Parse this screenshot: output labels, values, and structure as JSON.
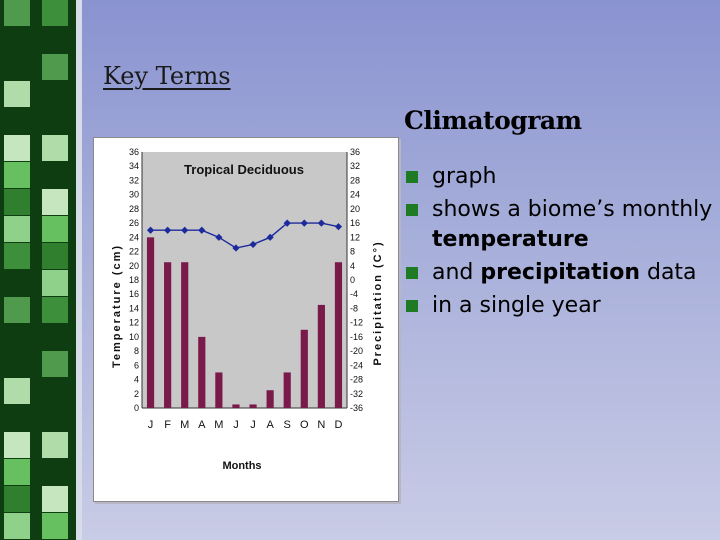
{
  "slide": {
    "heading": "Key Terms",
    "term": "Climatogram",
    "bullets": [
      {
        "parts": [
          {
            "text": "graph",
            "bold": false
          }
        ]
      },
      {
        "parts": [
          {
            "text": "shows a biome’s monthly ",
            "bold": false
          },
          {
            "text": "temperature",
            "bold": true
          }
        ]
      },
      {
        "parts": [
          {
            "text": "and ",
            "bold": false
          },
          {
            "text": "precipitation",
            "bold": true
          },
          {
            "text": " data",
            "bold": false
          }
        ]
      },
      {
        "parts": [
          {
            "text": "in a single year",
            "bold": false
          }
        ]
      }
    ]
  },
  "colors": {
    "bar": "#7a1a4a",
    "line": "#1c2a9c",
    "plot_bg": "#c8c8c8",
    "bullet": "#1f7a24"
  },
  "chart_data": {
    "type": "bar",
    "title": "Tropical Deciduous",
    "xlabel": "Months",
    "ylabel_left": "Temperature (cm)",
    "ylabel_right": "Precipitation (C°)",
    "categories": [
      "J",
      "F",
      "M",
      "A",
      "M",
      "J",
      "J",
      "A",
      "S",
      "O",
      "N",
      "D"
    ],
    "left_ticks": [
      "36",
      "34",
      "32",
      "30",
      "28",
      "26",
      "24",
      "22",
      "20",
      "18",
      "16",
      "14",
      "12",
      "10",
      "8",
      "6",
      "4",
      "2",
      "0"
    ],
    "right_ticks": [
      "36",
      "32",
      "28",
      "24",
      "20",
      "16",
      "12",
      "8",
      "4",
      "0",
      "-4",
      "-8",
      "-12",
      "-16",
      "-20",
      "-24",
      "-28",
      "-32",
      "-36"
    ],
    "ylim": [
      0,
      36
    ],
    "series": [
      {
        "kind": "bar",
        "values": [
          24,
          20.5,
          20.5,
          10,
          5,
          0.5,
          0.5,
          2.5,
          5,
          11,
          14.5,
          20.5
        ]
      },
      {
        "kind": "line",
        "values": [
          25,
          25,
          25,
          25,
          24,
          22.5,
          23,
          24,
          26,
          26,
          26,
          25.5
        ]
      }
    ]
  }
}
